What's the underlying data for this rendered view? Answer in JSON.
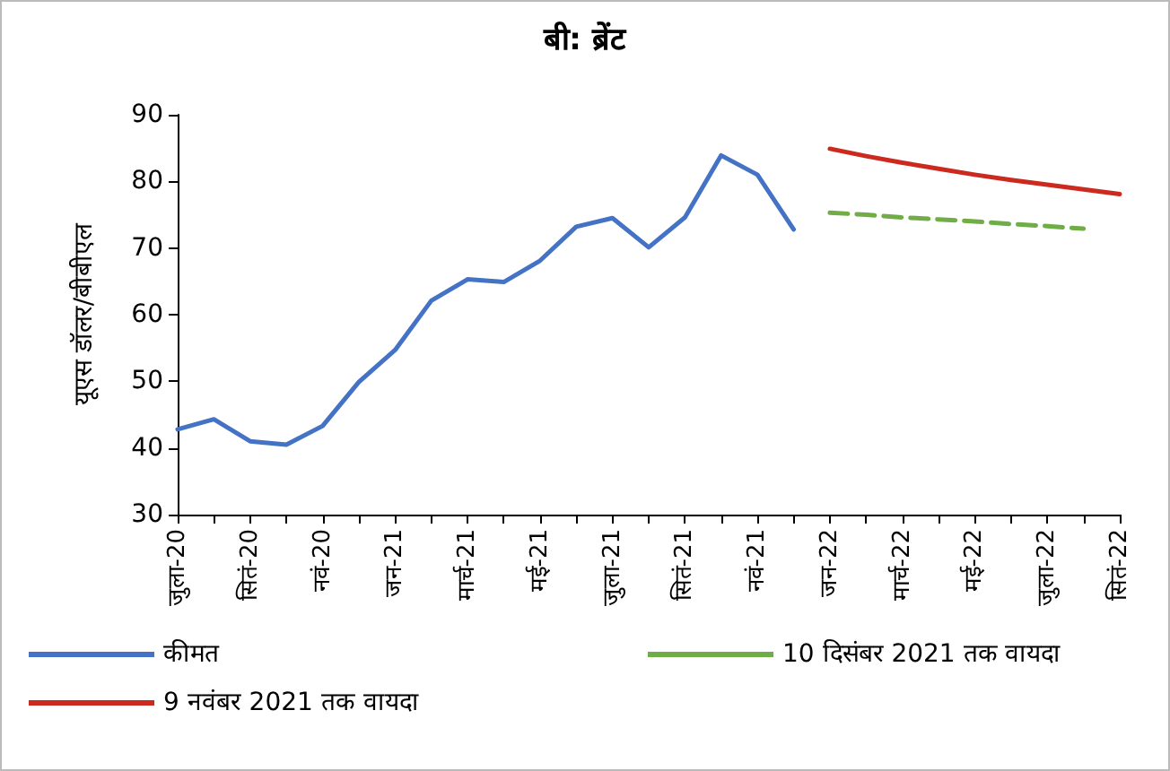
{
  "chart_data": {
    "type": "line",
    "title": "बी: ब्रेंट",
    "ylabel": "यूएस डॉलर/बीबीएल",
    "categories": [
      "जुला-20",
      null,
      "सितं-20",
      null,
      "नवं-20",
      null,
      "जन-21",
      null,
      "मार्च-21",
      null,
      "मई-21",
      null,
      "जुला-21",
      null,
      "सितं-21",
      null,
      "नवं-21",
      null,
      "जन-22",
      null,
      "मार्च-22",
      null,
      "मई-22",
      null,
      "जुला-22",
      null,
      "सितं-22"
    ],
    "series": [
      {
        "name": "कीमत",
        "color": "#4472c4",
        "line_style": "solid",
        "values": [
          42.8,
          44.3,
          41.0,
          40.5,
          43.3,
          49.9,
          54.7,
          62.1,
          65.3,
          64.9,
          68.1,
          73.2,
          74.5,
          70.1,
          74.6,
          83.9,
          81.0,
          72.8,
          null,
          null,
          null,
          null,
          null,
          null,
          null,
          null,
          null
        ]
      },
      {
        "name": "10 दिसंबर 2021 तक वायदा",
        "color": "#70ad47",
        "line_style": "dashed",
        "values": [
          null,
          null,
          null,
          null,
          null,
          null,
          null,
          null,
          null,
          null,
          null,
          null,
          null,
          null,
          null,
          null,
          null,
          null,
          75.3,
          75.0,
          74.6,
          74.3,
          74.0,
          73.6,
          73.3,
          72.9,
          null
        ]
      },
      {
        "name": "9 नवंबर 2021 तक वायदा",
        "color": "#cc2a1e",
        "line_style": "solid",
        "values": [
          null,
          null,
          null,
          null,
          null,
          null,
          null,
          null,
          null,
          null,
          null,
          null,
          null,
          null,
          null,
          null,
          null,
          null,
          84.9,
          83.8,
          82.8,
          81.9,
          81.0,
          80.2,
          79.5,
          78.8,
          78.1
        ]
      }
    ],
    "ylim": [
      30,
      90
    ],
    "yticks": [
      30,
      40,
      50,
      60,
      70,
      80,
      90
    ],
    "grid": false,
    "legend": "bottom",
    "marker": "none"
  }
}
